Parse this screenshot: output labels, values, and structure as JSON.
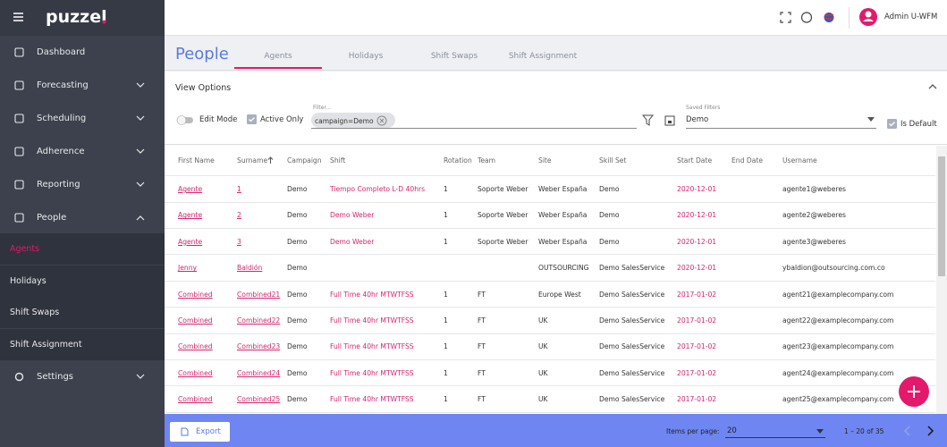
{
  "sidebar": {
    "logo": "puzzel",
    "items": [
      "Dashboard",
      "Forecasting",
      "Scheduling",
      "Adherence",
      "Reporting",
      "People"
    ],
    "sub_items": [
      "Agents",
      "Holidays",
      "Shift Swaps",
      "Shift Assignment"
    ],
    "bottom_items": [
      "Settings"
    ]
  },
  "topbar": {
    "user": "Admin U-WFM"
  },
  "page": {
    "title": "People",
    "tabs": [
      "Agents",
      "Holidays",
      "Shift Swaps",
      "Shift Assignment"
    ]
  },
  "view_options": {
    "title": "View Options",
    "edit_mode": "Edit Mode",
    "active_only": "Active Only",
    "filter_label": "Filter...",
    "filter_chip": "campaign=Demo",
    "saved_filters_label": "Saved Filters",
    "saved_filter": "Demo",
    "is_default": "Is Default"
  },
  "table": {
    "columns": [
      "First Name",
      "Surname",
      "Campaign",
      "Shift",
      "Rotation",
      "Team",
      "Site",
      "Skill Set",
      "Start Date",
      "End Date",
      "Username"
    ],
    "rows": [
      [
        "Agente",
        "1",
        "Demo",
        "Tiempo Completo L-D 40hrs",
        "1",
        "Soporte Weber",
        "Weber España",
        "Demo",
        "2020-12-01",
        null,
        "agente1@weberes"
      ],
      [
        "Agente",
        "2",
        "Demo",
        "Demo Weber",
        "1",
        "Soporte Weber",
        "Weber España",
        "Demo",
        "2020-12-01",
        null,
        "agente2@weberes"
      ],
      [
        "Agente",
        "3",
        "Demo",
        "Demo Weber",
        "1",
        "Soporte Weber",
        "Weber España",
        "Demo",
        "2020-12-01",
        null,
        "agente3@weberes"
      ],
      [
        "Jenny",
        "Baldión",
        "Demo",
        null,
        null,
        null,
        "OUTSOURCING",
        "Demo SalesService",
        "2020-12-01",
        null,
        "ybaldion@outsourcing.com.co"
      ],
      [
        "Combined",
        "Combined21",
        "Demo",
        "Full Time 40hr MTWTFSS",
        "1",
        "FT",
        "Europe West",
        "Demo SalesService",
        "2017-01-02",
        null,
        "agent21@examplecompany.com"
      ],
      [
        "Combined",
        "Combined22",
        "Demo",
        "Full Time 40hr MTWTFSS",
        "1",
        "FT",
        "UK",
        "Demo SalesService",
        "2017-01-02",
        null,
        "agent22@examplecompany.com"
      ],
      [
        "Combined",
        "Combined23",
        "Demo",
        "Full Time 40hr MTWTFSS",
        "1",
        "FT",
        "UK",
        "Demo SalesService",
        "2017-01-02",
        null,
        "agent23@examplecompany.com"
      ],
      [
        "Combined",
        "Combined24",
        "Demo",
        "Full Time 40hr MTWTFSS",
        "1",
        "FT",
        "UK",
        "Demo SalesService",
        "2017-01-02",
        null,
        "agent24@examplecompany.com"
      ],
      [
        "Combined",
        "Combined25",
        "Demo",
        "Full Time 40hr MTWTFSS",
        "1",
        "FT",
        "UK",
        "Demo SalesService",
        "2017-01-02",
        null,
        "agent25@examplecompany.com"
      ]
    ]
  },
  "footer": {
    "export": "Export",
    "items_per_page_label": "Items per page:",
    "items_per_page": "20",
    "range": "1 – 20 of 35"
  }
}
